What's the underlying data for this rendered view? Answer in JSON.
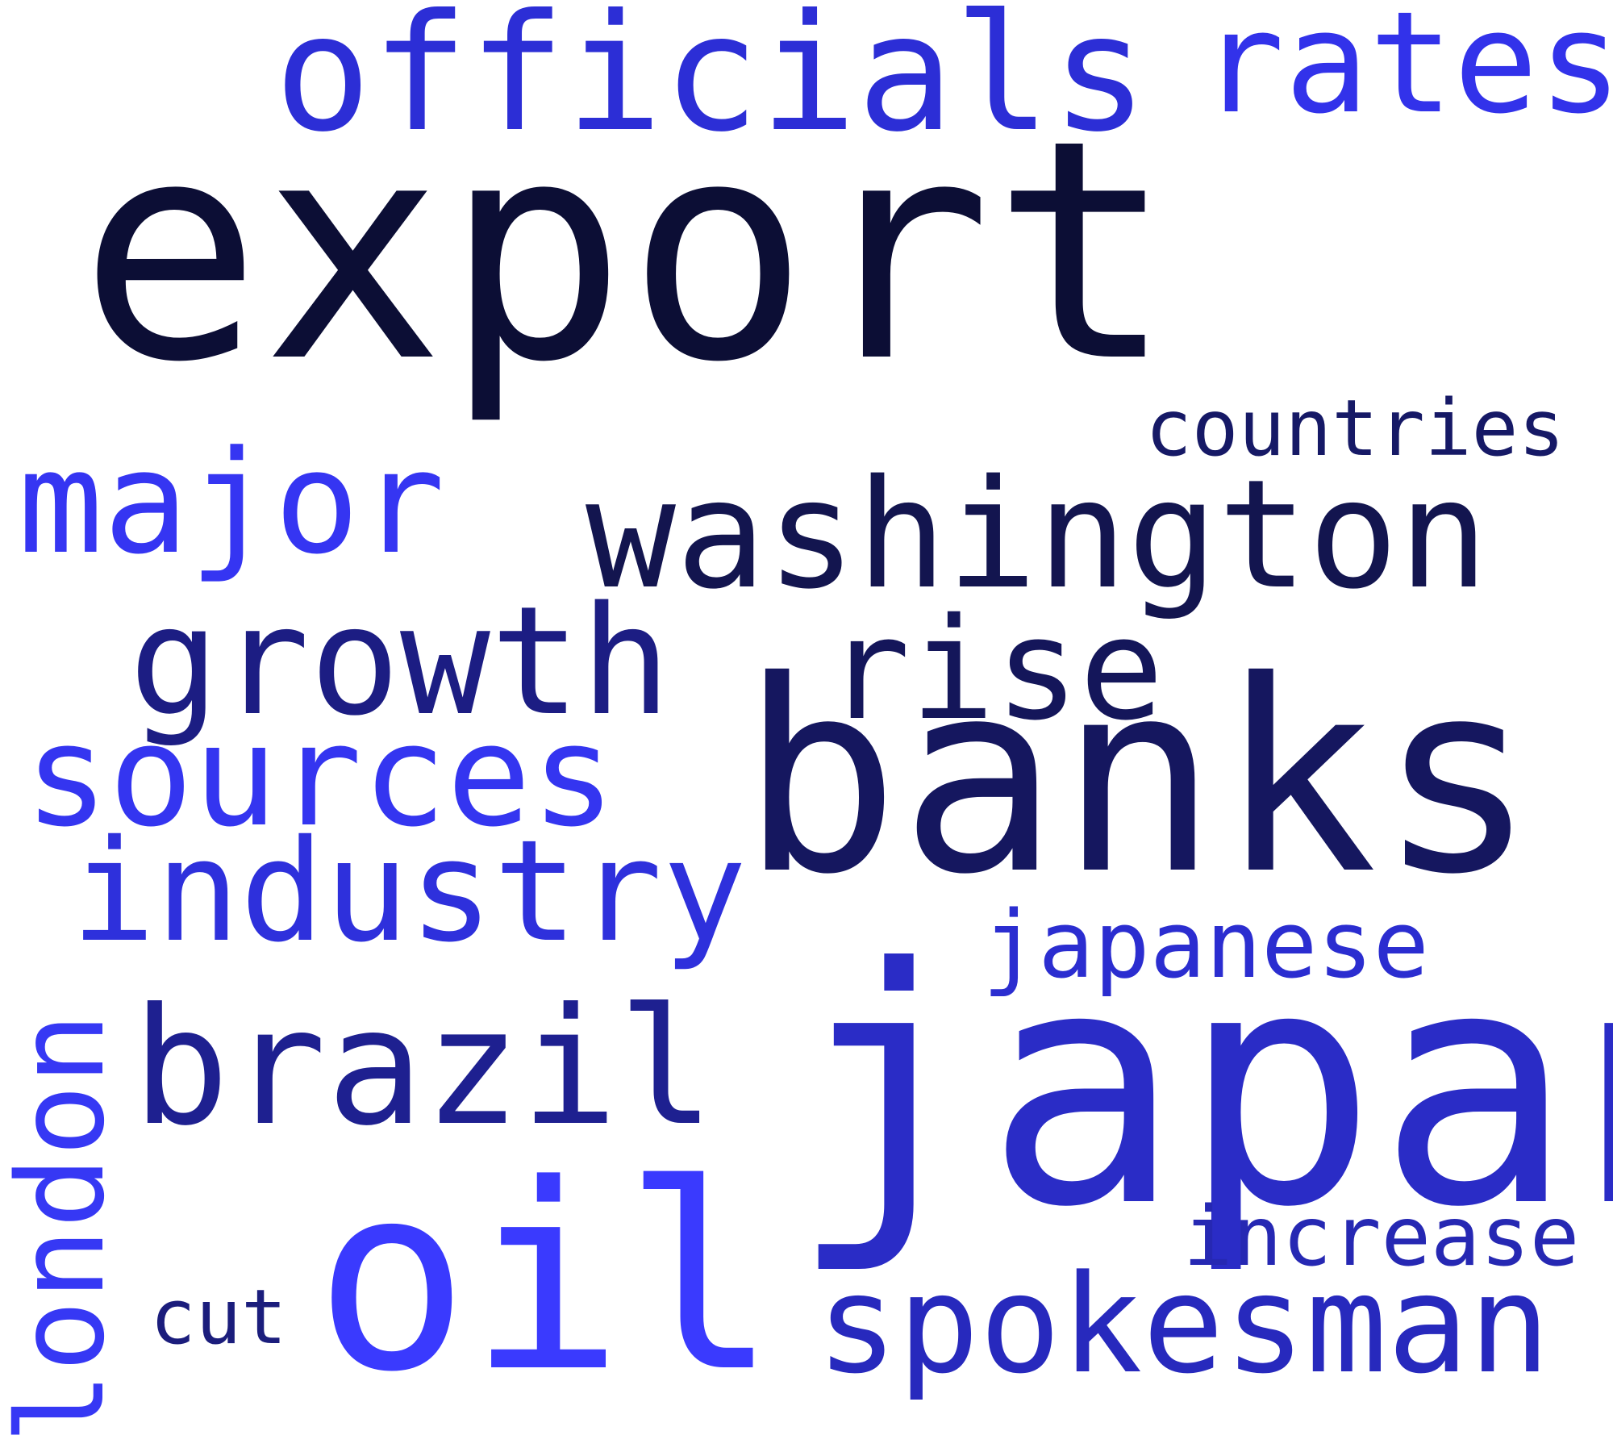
{
  "words": [
    {
      "id": "export",
      "text": "export",
      "color": "#0c0e35"
    },
    {
      "id": "banks",
      "text": "banks",
      "color": "#15175f"
    },
    {
      "id": "japan",
      "text": "japan",
      "color": "#2a2cc6"
    },
    {
      "id": "oil",
      "text": "oil",
      "color": "#3a3afe"
    },
    {
      "id": "washington",
      "text": "washington",
      "color": "#13154f"
    },
    {
      "id": "officials",
      "text": "officials",
      "color": "#2c2ed6"
    },
    {
      "id": "rates",
      "text": "rates",
      "color": "#3232ea"
    },
    {
      "id": "countries",
      "text": "countries",
      "color": "#161966"
    },
    {
      "id": "major",
      "text": "major",
      "color": "#3535f2"
    },
    {
      "id": "growth",
      "text": "growth",
      "color": "#1c1d83"
    },
    {
      "id": "rise",
      "text": "rise",
      "color": "#14165a"
    },
    {
      "id": "sources",
      "text": "sources",
      "color": "#3435f0"
    },
    {
      "id": "industry",
      "text": "industry",
      "color": "#2e30dc"
    },
    {
      "id": "japanese",
      "text": "japanese",
      "color": "#2b2dd0"
    },
    {
      "id": "brazil",
      "text": "brazil",
      "color": "#1e2090"
    },
    {
      "id": "london",
      "text": "london",
      "color": "#3638f4"
    },
    {
      "id": "increase",
      "text": "increase",
      "color": "#2628b3"
    },
    {
      "id": "cut",
      "text": "cut",
      "color": "#1b1d7c"
    },
    {
      "id": "spokesman",
      "text": "spokesman",
      "color": "#2729bd"
    }
  ]
}
